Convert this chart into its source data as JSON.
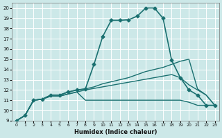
{
  "xlabel": "Humidex (Indice chaleur)",
  "xlim": [
    -0.5,
    23.5
  ],
  "ylim": [
    9,
    20.5
  ],
  "yticks": [
    9,
    10,
    11,
    12,
    13,
    14,
    15,
    16,
    17,
    18,
    19,
    20
  ],
  "xticks": [
    0,
    1,
    2,
    3,
    4,
    5,
    6,
    7,
    8,
    9,
    10,
    11,
    12,
    13,
    14,
    15,
    16,
    17,
    18,
    19,
    20,
    21,
    22,
    23
  ],
  "background_color": "#cce8e8",
  "grid_color": "#ffffff",
  "line_color": "#1a7070",
  "series": [
    {
      "x": [
        0,
        1,
        2,
        3,
        4,
        5,
        6,
        7,
        8,
        9,
        10,
        11,
        12,
        13,
        14,
        15,
        16,
        17,
        18,
        19,
        20,
        21,
        22,
        23
      ],
      "y": [
        9.0,
        9.5,
        11.0,
        11.1,
        11.5,
        11.5,
        11.8,
        12.0,
        12.1,
        14.5,
        17.2,
        18.8,
        18.8,
        18.85,
        19.2,
        20.0,
        20.0,
        19.0,
        14.9,
        13.2,
        12.0,
        11.5,
        10.5,
        10.5
      ],
      "marker": "D",
      "markersize": 2.5,
      "linewidth": 1.2
    },
    {
      "x": [
        0,
        1,
        2,
        3,
        4,
        5,
        6,
        7,
        8,
        9,
        10,
        11,
        12,
        13,
        14,
        15,
        16,
        17,
        18,
        19,
        20,
        21,
        22,
        23
      ],
      "y": [
        9.0,
        9.5,
        11.0,
        11.1,
        11.5,
        11.5,
        11.8,
        12.0,
        12.1,
        12.3,
        12.6,
        12.8,
        13.0,
        13.2,
        13.5,
        13.8,
        14.0,
        14.2,
        14.5,
        14.8,
        15.0,
        12.1,
        11.5,
        10.5
      ],
      "marker": null,
      "linewidth": 1.0
    },
    {
      "x": [
        0,
        1,
        2,
        3,
        4,
        5,
        6,
        7,
        8,
        9,
        10,
        11,
        12,
        13,
        14,
        15,
        16,
        17,
        18,
        19,
        20,
        21,
        22,
        23
      ],
      "y": [
        9.0,
        9.5,
        11.0,
        11.1,
        11.4,
        11.4,
        11.6,
        11.8,
        11.0,
        11.0,
        11.0,
        11.0,
        11.0,
        11.0,
        11.0,
        11.0,
        11.0,
        11.0,
        11.0,
        11.0,
        10.8,
        10.5,
        10.5,
        10.5
      ],
      "marker": null,
      "linewidth": 1.0
    },
    {
      "x": [
        0,
        1,
        2,
        3,
        4,
        5,
        6,
        7,
        8,
        9,
        10,
        11,
        12,
        13,
        14,
        15,
        16,
        17,
        18,
        19,
        20,
        21,
        22,
        23
      ],
      "y": [
        9.0,
        9.5,
        11.0,
        11.1,
        11.4,
        11.4,
        11.6,
        11.8,
        12.0,
        12.15,
        12.3,
        12.45,
        12.6,
        12.75,
        12.9,
        13.05,
        13.2,
        13.35,
        13.5,
        13.2,
        12.5,
        12.0,
        11.5,
        10.5
      ],
      "marker": null,
      "linewidth": 1.0
    }
  ]
}
